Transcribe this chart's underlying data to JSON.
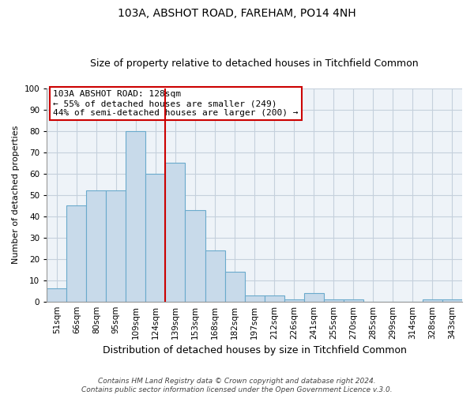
{
  "title": "103A, ABSHOT ROAD, FAREHAM, PO14 4NH",
  "subtitle": "Size of property relative to detached houses in Titchfield Common",
  "xlabel": "Distribution of detached houses by size in Titchfield Common",
  "ylabel": "Number of detached properties",
  "categories": [
    "51sqm",
    "66sqm",
    "80sqm",
    "95sqm",
    "109sqm",
    "124sqm",
    "139sqm",
    "153sqm",
    "168sqm",
    "182sqm",
    "197sqm",
    "212sqm",
    "226sqm",
    "241sqm",
    "255sqm",
    "270sqm",
    "285sqm",
    "299sqm",
    "314sqm",
    "328sqm",
    "343sqm"
  ],
  "values": [
    6,
    45,
    52,
    52,
    80,
    60,
    65,
    43,
    24,
    14,
    3,
    3,
    1,
    4,
    1,
    1,
    0,
    0,
    0,
    1,
    1
  ],
  "bar_color": "#c8daea",
  "bar_edgecolor": "#6aaacc",
  "ylim": [
    0,
    100
  ],
  "yticks": [
    0,
    10,
    20,
    30,
    40,
    50,
    60,
    70,
    80,
    90,
    100
  ],
  "vline_x": 5.5,
  "vline_color": "#cc0000",
  "annotation_title": "103A ABSHOT ROAD: 128sqm",
  "annotation_line1": "← 55% of detached houses are smaller (249)",
  "annotation_line2": "44% of semi-detached houses are larger (200) →",
  "annotation_box_facecolor": "#ffffff",
  "annotation_box_edgecolor": "#cc0000",
  "footer_line1": "Contains HM Land Registry data © Crown copyright and database right 2024.",
  "footer_line2": "Contains public sector information licensed under the Open Government Licence v.3.0.",
  "background_color": "#ffffff",
  "plot_background_color": "#eef3f8",
  "grid_color": "#c5d0dc",
  "title_fontsize": 10,
  "subtitle_fontsize": 9,
  "xlabel_fontsize": 9,
  "ylabel_fontsize": 8,
  "tick_fontsize": 7.5,
  "footer_fontsize": 6.5,
  "annotation_fontsize": 8
}
